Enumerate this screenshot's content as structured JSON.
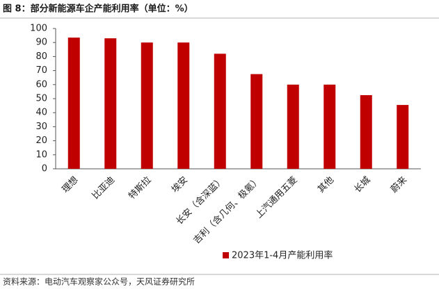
{
  "chart_data": {
    "type": "bar",
    "title": "图 8：部分新能源车企产能利用率（单位：%）",
    "categories": [
      "理想",
      "比亚迪",
      "特斯拉",
      "埃安",
      "长安（含深蓝）",
      "吉利（含几何、极氪）",
      "上汽通用五菱",
      "其他",
      "长城",
      "蔚来"
    ],
    "series": [
      {
        "name": "2023年1-4月产能利用率",
        "color": "#c00000",
        "values": [
          93.5,
          93,
          90,
          90,
          82,
          67.5,
          60,
          60,
          52.5,
          45.5
        ]
      }
    ],
    "ylim": [
      0,
      100
    ],
    "yticks": [
      0,
      10,
      20,
      30,
      40,
      50,
      60,
      70,
      80,
      90,
      100
    ],
    "grid": false,
    "legend": "bottom",
    "source": "资料来源：电动汽车观察家公众号，天风证券研究所"
  }
}
